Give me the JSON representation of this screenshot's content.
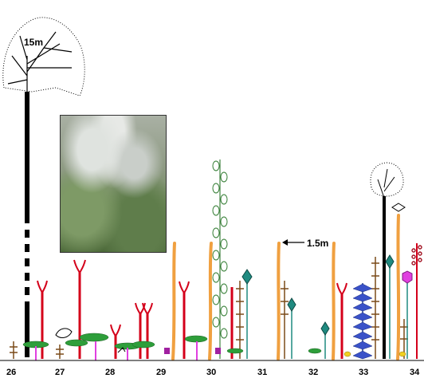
{
  "labels": {
    "tree_height": "15m",
    "shrub_height": "1.5m"
  },
  "axis": {
    "ticks": [
      "26",
      "27",
      "28",
      "29",
      "30",
      "31",
      "32",
      "33",
      "34"
    ]
  },
  "colors": {
    "trunk": "#000000",
    "red_stem": "#d4001a",
    "orange_stem": "#f0a040",
    "green_leaf": "#2e9e3a",
    "magenta_stem": "#e040e0",
    "blue_spike": "#3a52c8",
    "teal_head": "#1f8a80",
    "brown_stem": "#7a4a18"
  }
}
